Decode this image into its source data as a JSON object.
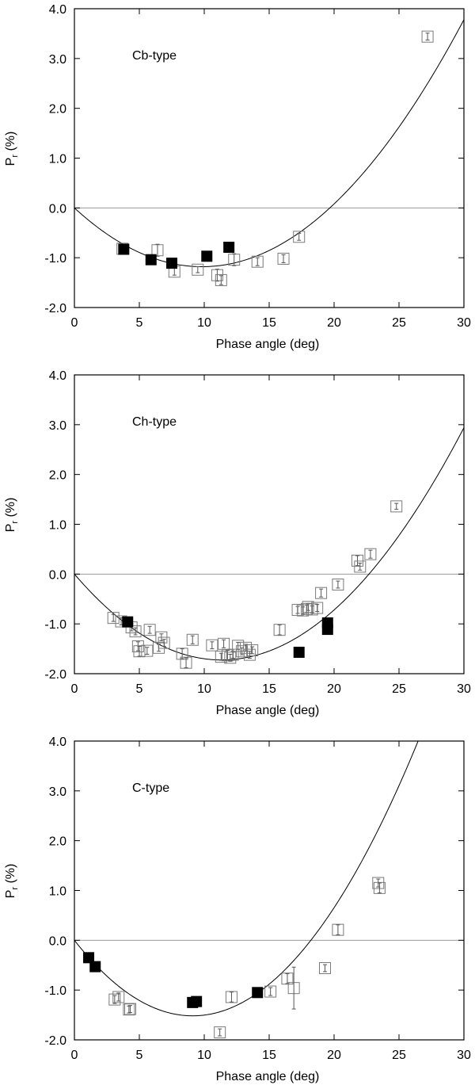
{
  "chart_data": [
    {
      "type": "scatter",
      "title": "",
      "panel_label": "Cb-type",
      "xlabel": "Phase angle (deg)",
      "ylabel": "P",
      "ylabel_sub": "r",
      "ylabel_unit": " (%)",
      "xlim": [
        0,
        30
      ],
      "ylim": [
        -2.0,
        4.0
      ],
      "xticks": [
        0,
        5,
        10,
        15,
        20,
        25,
        30
      ],
      "xtick_labels": [
        "0",
        "5",
        "10",
        "15",
        "20",
        "25",
        "30"
      ],
      "yticks": [
        -2.0,
        -1.0,
        0.0,
        1.0,
        2.0,
        3.0,
        4.0
      ],
      "ytick_labels": [
        "-2.0",
        "-1.0",
        "0.0",
        "1.0",
        "2.0",
        "3.0",
        "4.0"
      ],
      "fit_curve": {
        "a": 0.0122,
        "b": -0.24,
        "c": 0.0
      },
      "series": [
        {
          "name": "open squares",
          "marker": "open-square",
          "points": [
            {
              "x": 3.7,
              "y": -0.82,
              "err": 0.08
            },
            {
              "x": 6.4,
              "y": -0.85,
              "err": 0.12
            },
            {
              "x": 7.7,
              "y": -1.28,
              "err": 0.07
            },
            {
              "x": 9.5,
              "y": -1.24,
              "err": 0.06
            },
            {
              "x": 11.0,
              "y": -1.35,
              "err": 0.12
            },
            {
              "x": 11.3,
              "y": -1.45,
              "err": 0.09
            },
            {
              "x": 12.3,
              "y": -1.04,
              "err": 0.12
            },
            {
              "x": 14.1,
              "y": -1.08,
              "err": 0.08
            },
            {
              "x": 16.1,
              "y": -1.02,
              "err": 0.08
            },
            {
              "x": 17.3,
              "y": -0.58,
              "err": 0.07
            },
            {
              "x": 27.2,
              "y": 3.44,
              "err": 0.07
            }
          ]
        },
        {
          "name": "filled squares",
          "marker": "filled-square",
          "points": [
            {
              "x": 3.8,
              "y": -0.83
            },
            {
              "x": 5.9,
              "y": -1.04
            },
            {
              "x": 7.5,
              "y": -1.11
            },
            {
              "x": 10.2,
              "y": -0.97
            },
            {
              "x": 11.9,
              "y": -0.79
            }
          ]
        }
      ]
    },
    {
      "type": "scatter",
      "title": "",
      "panel_label": "Ch-type",
      "xlabel": "Phase angle (deg)",
      "ylabel": "P",
      "ylabel_sub": "r",
      "ylabel_unit": " (%)",
      "xlim": [
        0,
        30
      ],
      "ylim": [
        -2.0,
        4.0
      ],
      "xticks": [
        0,
        5,
        10,
        15,
        20,
        25,
        30
      ],
      "xtick_labels": [
        "0",
        "5",
        "10",
        "15",
        "20",
        "25",
        "30"
      ],
      "yticks": [
        -2.0,
        -1.0,
        0.0,
        1.0,
        2.0,
        3.0,
        4.0
      ],
      "ytick_labels": [
        "-2.0",
        "-1.0",
        "0.0",
        "1.0",
        "2.0",
        "3.0",
        "4.0"
      ],
      "fit_curve": {
        "a": 0.0134,
        "b": -0.304,
        "c": 0.0
      },
      "series": [
        {
          "name": "open squares",
          "marker": "open-square",
          "points": [
            {
              "x": 3.0,
              "y": -0.88,
              "err": 0.07
            },
            {
              "x": 3.6,
              "y": -0.95,
              "err": 0.07
            },
            {
              "x": 4.4,
              "y": -1.07,
              "err": 0.07
            },
            {
              "x": 4.7,
              "y": -1.15,
              "err": 0.07
            },
            {
              "x": 4.9,
              "y": -1.45,
              "err": 0.09
            },
            {
              "x": 5.0,
              "y": -1.55,
              "err": 0.1
            },
            {
              "x": 5.6,
              "y": -1.54,
              "err": 0.07
            },
            {
              "x": 5.8,
              "y": -1.12,
              "err": 0.07
            },
            {
              "x": 6.5,
              "y": -1.48,
              "err": 0.07
            },
            {
              "x": 6.7,
              "y": -1.27,
              "err": 0.07
            },
            {
              "x": 6.9,
              "y": -1.38,
              "err": 0.07
            },
            {
              "x": 8.3,
              "y": -1.6,
              "err": 0.1
            },
            {
              "x": 8.6,
              "y": -1.78,
              "err": 0.1
            },
            {
              "x": 9.1,
              "y": -1.32,
              "err": 0.08
            },
            {
              "x": 10.6,
              "y": -1.43,
              "err": 0.07
            },
            {
              "x": 11.3,
              "y": -1.66,
              "err": 0.07
            },
            {
              "x": 11.5,
              "y": -1.4,
              "err": 0.08
            },
            {
              "x": 11.8,
              "y": -1.63,
              "err": 0.1
            },
            {
              "x": 12.0,
              "y": -1.68,
              "err": 0.07
            },
            {
              "x": 12.2,
              "y": -1.62,
              "err": 0.07
            },
            {
              "x": 12.6,
              "y": -1.44,
              "err": 0.07
            },
            {
              "x": 12.9,
              "y": -1.55,
              "err": 0.07
            },
            {
              "x": 13.2,
              "y": -1.48,
              "err": 0.07
            },
            {
              "x": 13.5,
              "y": -1.62,
              "err": 0.07
            },
            {
              "x": 13.7,
              "y": -1.53,
              "err": 0.07
            },
            {
              "x": 15.8,
              "y": -1.12,
              "err": 0.1
            },
            {
              "x": 17.2,
              "y": -0.72,
              "err": 0.07
            },
            {
              "x": 17.6,
              "y": -0.73,
              "err": 0.07
            },
            {
              "x": 17.9,
              "y": -0.7,
              "err": 0.08
            },
            {
              "x": 18.0,
              "y": -0.66,
              "err": 0.07
            },
            {
              "x": 18.3,
              "y": -0.71,
              "err": 0.07
            },
            {
              "x": 18.7,
              "y": -0.68,
              "err": 0.07
            },
            {
              "x": 19.0,
              "y": -0.38,
              "err": 0.08
            },
            {
              "x": 20.3,
              "y": -0.21,
              "err": 0.07
            },
            {
              "x": 21.8,
              "y": 0.27,
              "err": 0.1
            },
            {
              "x": 22.0,
              "y": 0.15,
              "err": 0.07
            },
            {
              "x": 22.8,
              "y": 0.4,
              "err": 0.08
            },
            {
              "x": 24.8,
              "y": 1.36,
              "err": 0.06
            }
          ]
        },
        {
          "name": "filled squares",
          "marker": "filled-square",
          "points": [
            {
              "x": 4.1,
              "y": -0.96
            },
            {
              "x": 17.3,
              "y": -1.57
            },
            {
              "x": 19.5,
              "y": -0.98
            },
            {
              "x": 19.5,
              "y": -1.11
            }
          ]
        }
      ]
    },
    {
      "type": "scatter",
      "title": "",
      "panel_label": "C-type",
      "xlabel": "Phase angle (deg)",
      "ylabel": "P",
      "ylabel_sub": "r",
      "ylabel_unit": " (%)",
      "xlim": [
        0,
        30
      ],
      "ylim": [
        -2.0,
        4.0
      ],
      "xticks": [
        0,
        5,
        10,
        15,
        20,
        25,
        30
      ],
      "xtick_labels": [
        "0",
        "5",
        "10",
        "15",
        "20",
        "25",
        "30"
      ],
      "yticks": [
        -2.0,
        -1.0,
        0.0,
        1.0,
        2.0,
        3.0,
        4.0
      ],
      "ytick_labels": [
        "-2.0",
        "-1.0",
        "0.0",
        "1.0",
        "2.0",
        "3.0",
        "4.0"
      ],
      "fit_curve": {
        "a": 0.0183,
        "b": -0.3333,
        "c": 0.0
      },
      "series": [
        {
          "name": "open squares",
          "marker": "open-square",
          "points": [
            {
              "x": 3.1,
              "y": -1.19,
              "err": 0.08
            },
            {
              "x": 3.4,
              "y": -1.14,
              "err": 0.08
            },
            {
              "x": 4.2,
              "y": -1.39,
              "err": 0.07
            },
            {
              "x": 4.3,
              "y": -1.38,
              "err": 0.07
            },
            {
              "x": 11.2,
              "y": -1.85,
              "err": 0.07
            },
            {
              "x": 12.1,
              "y": -1.14,
              "err": 0.1
            },
            {
              "x": 15.1,
              "y": -1.03,
              "err": 0.08
            },
            {
              "x": 16.4,
              "y": -0.77,
              "err": 0.1
            },
            {
              "x": 16.9,
              "y": -0.96,
              "err": 0.42
            },
            {
              "x": 19.3,
              "y": -0.56,
              "err": 0.07
            },
            {
              "x": 20.3,
              "y": 0.21,
              "err": 0.1
            },
            {
              "x": 23.4,
              "y": 1.15,
              "err": 0.08
            },
            {
              "x": 23.5,
              "y": 1.05,
              "err": 0.1
            }
          ]
        },
        {
          "name": "filled squares",
          "marker": "filled-square",
          "points": [
            {
              "x": 1.1,
              "y": -0.35
            },
            {
              "x": 1.6,
              "y": -0.53
            },
            {
              "x": 9.1,
              "y": -1.25
            },
            {
              "x": 9.4,
              "y": -1.23
            },
            {
              "x": 14.1,
              "y": -1.05
            }
          ]
        }
      ]
    }
  ]
}
